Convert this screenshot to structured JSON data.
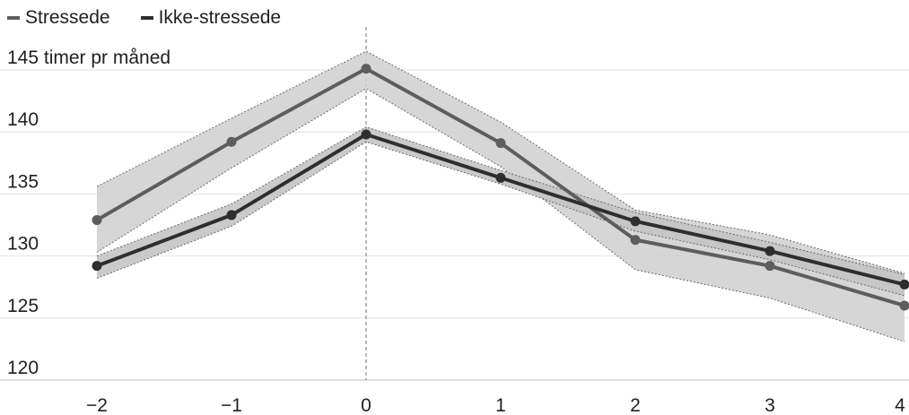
{
  "chart_data": {
    "type": "line",
    "ylabel": "timer pr måned",
    "x": [
      -2,
      -1,
      0,
      1,
      2,
      3,
      4
    ],
    "xlim": [
      -2,
      4
    ],
    "ylim": [
      120,
      145
    ],
    "yticks": [
      120,
      125,
      130,
      135,
      140,
      145
    ],
    "xticks": [
      -2,
      -1,
      0,
      1,
      2,
      3,
      4
    ],
    "ytick_labels": [
      "120",
      "125",
      "130",
      "135",
      "140",
      "145"
    ],
    "xtick_labels": [
      "−2",
      "−1",
      "0",
      "1",
      "2",
      "3",
      "4"
    ],
    "first_tick_label": "145 timer pr måned",
    "reference_line_x": 0,
    "grid": "horizontal",
    "legend_position": "top-left",
    "series": [
      {
        "name": "Stressede",
        "color": "#5d5d5d",
        "values": [
          132.9,
          139.2,
          145.1,
          139.1,
          131.3,
          129.2,
          126.0
        ],
        "band_lower": [
          130.3,
          137.1,
          143.5,
          137.2,
          128.9,
          126.6,
          123.1
        ],
        "band_upper": [
          135.6,
          141.1,
          146.5,
          140.8,
          133.7,
          131.7,
          128.6
        ]
      },
      {
        "name": "Ikke-stressede",
        "color": "#2e2e2e",
        "values": [
          129.2,
          133.3,
          139.8,
          136.3,
          132.8,
          130.4,
          127.7
        ],
        "band_lower": [
          128.2,
          132.4,
          139.2,
          135.8,
          132.0,
          129.7,
          126.8
        ],
        "band_upper": [
          130.0,
          134.2,
          140.4,
          136.9,
          133.5,
          131.1,
          128.5
        ]
      }
    ]
  }
}
